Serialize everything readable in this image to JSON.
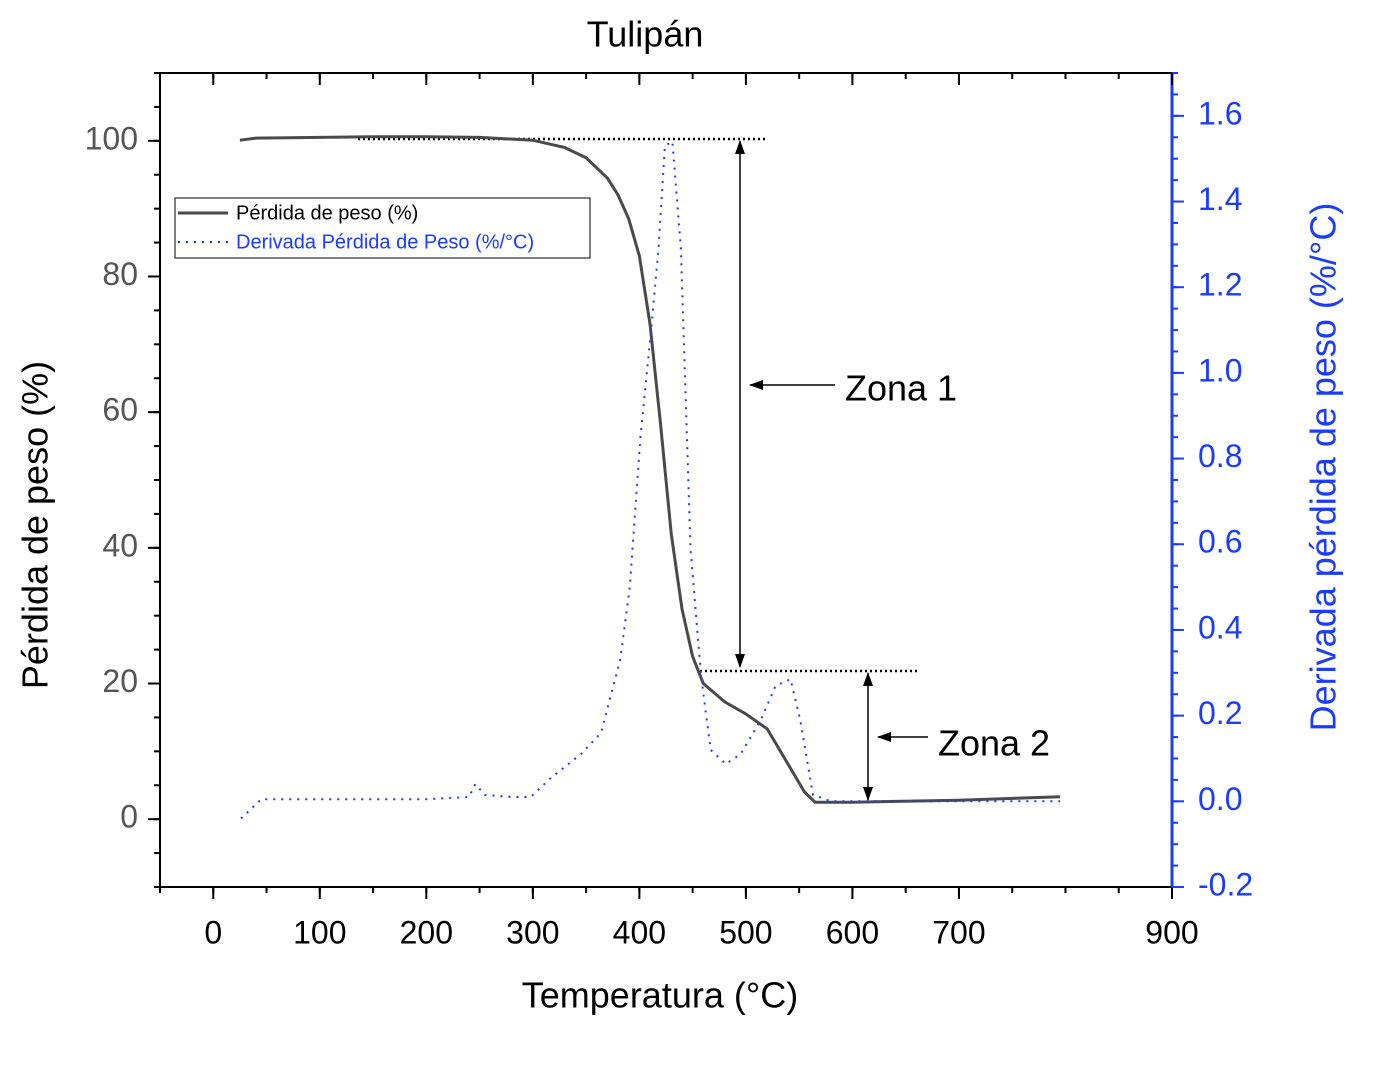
{
  "chart_data": {
    "type": "line",
    "title": "Tulipán",
    "x_label": "Temperatura (°C)",
    "y_label": "Pérdida de peso (%)",
    "y2_label": "Derivada pérdida de peso (%/°C)",
    "xlim": [
      -50,
      900
    ],
    "xticks": [
      0,
      100,
      200,
      300,
      400,
      500,
      600,
      700,
      900
    ],
    "ylim": [
      -10,
      110
    ],
    "yticks": [
      0,
      20,
      40,
      60,
      80,
      100
    ],
    "y2lim": [
      -0.2,
      1.7
    ],
    "y2ticks": [
      -0.2,
      {
        "value": 0,
        "label": "0.0"
      },
      0.2,
      0.4,
      0.6,
      0.8,
      {
        "value": 1,
        "label": "1.0"
      },
      1.2,
      1.4,
      1.6
    ],
    "legend": "upper left",
    "series": [
      {
        "name": "Pérdida de peso (%)",
        "color": "#4a4a4a",
        "style": "solid",
        "x": [
          25,
          40,
          100,
          150,
          200,
          250,
          300,
          330,
          350,
          370,
          380,
          390,
          400,
          410,
          420,
          430,
          440,
          450,
          460,
          480,
          500,
          520,
          540,
          555,
          565,
          600,
          700,
          795
        ],
        "values": [
          100.1,
          100.4,
          100.5,
          100.6,
          100.6,
          100.5,
          100.1,
          99,
          97.5,
          94.5,
          92,
          88.5,
          83,
          73,
          58,
          42,
          31,
          24,
          20,
          17.3,
          15.5,
          13.3,
          8,
          4,
          2.5,
          2.5,
          2.8,
          3.3
        ]
      },
      {
        "name": "Derivada Pérdida de Peso (%/°C)",
        "color": "#1a3cff",
        "style": "dotted",
        "axis": "y2",
        "x": [
          26,
          45,
          100,
          200,
          240,
          246,
          255,
          280,
          298,
          317,
          345,
          364,
          382,
          391,
          401,
          411,
          418,
          424,
          431,
          439,
          448,
          458,
          467,
          481,
          495,
          514,
          528,
          542,
          551,
          563,
          580,
          700,
          795
        ],
        "values": [
          -0.04,
          0.005,
          0.005,
          0.005,
          0.01,
          0.04,
          0.015,
          0.01,
          0.01,
          0.055,
          0.11,
          0.16,
          0.33,
          0.5,
          0.85,
          1.1,
          1.29,
          1.53,
          1.54,
          1.29,
          0.59,
          0.29,
          0.12,
          0.087,
          0.11,
          0.19,
          0.27,
          0.285,
          0.19,
          0.015,
          0,
          0,
          0
        ]
      }
    ],
    "annotations": [
      "Zona 1",
      "Zona 2"
    ]
  }
}
